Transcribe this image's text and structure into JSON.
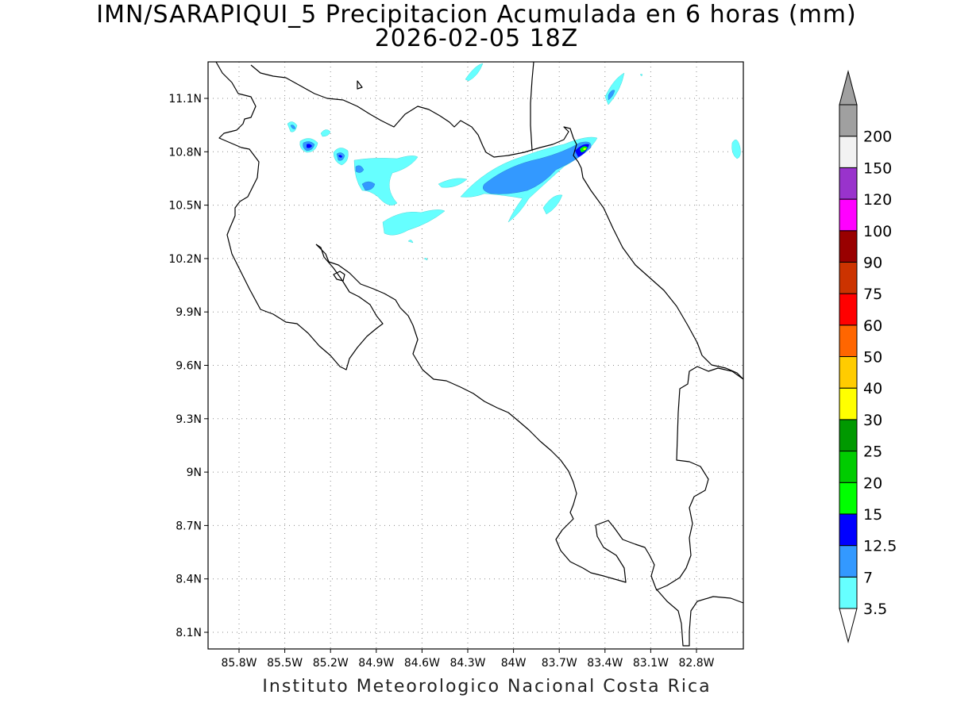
{
  "header": {
    "title": "IMN/SARAPIQUI_5 Precipitacion Acumulada en 6 horas (mm)",
    "datetime": "2026-02-05 18Z"
  },
  "footer": {
    "credit": "Instituto Meteorologico Nacional Costa Rica"
  },
  "map": {
    "lat_ticks": [
      "11.1N",
      "10.8N",
      "10.5N",
      "10.2N",
      "9.9N",
      "9.6N",
      "9.3N",
      "9N",
      "8.7N",
      "8.4N",
      "8.1N"
    ],
    "lon_ticks": [
      "85.8W",
      "85.5W",
      "85.2W",
      "84.9W",
      "84.6W",
      "84.3W",
      "84W",
      "83.7W",
      "83.4W",
      "83.1W",
      "82.8W"
    ],
    "grid": "dotted"
  },
  "colorbar": {
    "labels": [
      "3.5",
      "7",
      "12.5",
      "15",
      "20",
      "25",
      "30",
      "40",
      "50",
      "60",
      "75",
      "90",
      "100",
      "120",
      "150",
      "200"
    ],
    "colors": [
      "#66ffff",
      "#3399ff",
      "#0000ff",
      "#00ff00",
      "#00cc00",
      "#009900",
      "#ffff00",
      "#ffcc00",
      "#ff6600",
      "#ff0000",
      "#cc3300",
      "#990000",
      "#ff00ff",
      "#9933cc",
      "#f2f2f2",
      "#a0a0a0"
    ]
  }
}
